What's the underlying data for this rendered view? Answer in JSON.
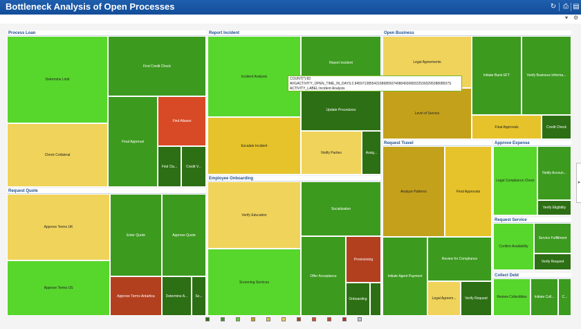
{
  "header": {
    "title": "Bottleneck Analysis of Open Processes",
    "icons": [
      "refresh-icon",
      "print-icon",
      "export-icon"
    ]
  },
  "toolbar": {
    "options_glyph": "▾",
    "settings_glyph": "⚙"
  },
  "colors": {
    "header_bg": "#1a56a3",
    "bright_green": "#57d62c",
    "medium_green": "#3c9a1f",
    "dark_green": "#2d6f14",
    "light_yellow": "#f0d35a",
    "yellow": "#e6c32a",
    "olive": "#c4a11b",
    "orange": "#d84a25",
    "rust": "#b2401f"
  },
  "groups": [
    {
      "title": "Process Loan",
      "cells": [
        {
          "label": "Determine Limit",
          "color": "#57d62c",
          "tone": "lt"
        },
        {
          "label": "Check Collateral",
          "color": "#f0d35a",
          "tone": "lt"
        },
        {
          "label": "First Credit Check",
          "color": "#3c9a1f",
          "tone": "dk"
        },
        {
          "label": "Final Approval",
          "color": "#3c9a1f",
          "tone": "dk"
        },
        {
          "label": "Find Aliases",
          "color": "#d84a25",
          "tone": "dk"
        },
        {
          "label": "Find Clu...",
          "color": "#2d6f14",
          "tone": "dk"
        },
        {
          "label": "Credit V...",
          "color": "#2d6f14",
          "tone": "dk"
        }
      ]
    },
    {
      "title": "Request Quote",
      "cells": [
        {
          "label": "Approve Terms UK",
          "color": "#f0d35a",
          "tone": "lt"
        },
        {
          "label": "Approve Terms US",
          "color": "#57d62c",
          "tone": "lt"
        },
        {
          "label": "Enter Quote",
          "color": "#3c9a1f",
          "tone": "dk"
        },
        {
          "label": "Approve Quote",
          "color": "#3c9a1f",
          "tone": "dk"
        },
        {
          "label": "Approve Terms Antartica",
          "color": "#b2401f",
          "tone": "dk"
        },
        {
          "label": "Determine A...",
          "color": "#2d6f14",
          "tone": "dk"
        },
        {
          "label": "Se...",
          "color": "#2d6f14",
          "tone": "dk"
        }
      ]
    },
    {
      "title": "Report Incident",
      "cells": [
        {
          "label": "Incident Analysis",
          "color": "#57d62c",
          "tone": "lt"
        },
        {
          "label": "Report Incident",
          "color": "#3c9a1f",
          "tone": "dk"
        },
        {
          "label": "Update Procedures",
          "color": "#2d6f14",
          "tone": "dk"
        },
        {
          "label": "Escalate Incident",
          "color": "#e6c32a",
          "tone": "lt"
        },
        {
          "label": "Notify Parties",
          "color": "#f0d35a",
          "tone": "lt"
        },
        {
          "label": "Assig...",
          "color": "#2d6f14",
          "tone": "dk"
        }
      ]
    },
    {
      "title": "Employee Onboarding",
      "cells": [
        {
          "label": "Verify Education",
          "color": "#f0d35a",
          "tone": "lt"
        },
        {
          "label": "Screening Services",
          "color": "#57d62c",
          "tone": "lt"
        },
        {
          "label": "Socialization",
          "color": "#3c9a1f",
          "tone": "dk"
        },
        {
          "label": "Offer Acceptance",
          "color": "#3c9a1f",
          "tone": "dk"
        },
        {
          "label": "Provisioning",
          "color": "#b2401f",
          "tone": "dk"
        },
        {
          "label": "Onboarding",
          "color": "#2d6f14",
          "tone": "dk"
        },
        {
          "label": "",
          "color": "#2d6f14",
          "tone": "dk"
        }
      ]
    },
    {
      "title": "Open Business",
      "cells": [
        {
          "label": "Legal Agreements",
          "color": "#f0d35a",
          "tone": "lt"
        },
        {
          "label": "Level of Service",
          "color": "#c4a11b",
          "tone": "lt"
        },
        {
          "label": "Initiate Bank EFT",
          "color": "#3c9a1f",
          "tone": "dk"
        },
        {
          "label": "Verify Business Informa...",
          "color": "#3c9a1f",
          "tone": "dk"
        },
        {
          "label": "Final Approvals",
          "color": "#e6c32a",
          "tone": "lt"
        },
        {
          "label": "Credit Check",
          "color": "#2d6f14",
          "tone": "dk"
        }
      ]
    },
    {
      "title": "Request Travel",
      "cells": [
        {
          "label": "Analyze Patterns",
          "color": "#c4a11b",
          "tone": "lt"
        },
        {
          "label": "Final Approvals",
          "color": "#e6c32a",
          "tone": "lt"
        },
        {
          "label": "Initiate Agent Payment",
          "color": "#3c9a1f",
          "tone": "dk"
        },
        {
          "label": "Review for Compliance",
          "color": "#3c9a1f",
          "tone": "dk"
        },
        {
          "label": "Legal Agreem...",
          "color": "#f0d35a",
          "tone": "lt"
        },
        {
          "label": "Verify Request",
          "color": "#2d6f14",
          "tone": "dk"
        }
      ]
    },
    {
      "title": "Approve Expense",
      "cells": [
        {
          "label": "Legal Compliance Check",
          "color": "#57d62c",
          "tone": "lt"
        },
        {
          "label": "Notify Accoun...",
          "color": "#3c9a1f",
          "tone": "dk"
        },
        {
          "label": "Verify Eligibility",
          "color": "#2d6f14",
          "tone": "dk"
        }
      ]
    },
    {
      "title": "Request Service",
      "cells": [
        {
          "label": "Confirm Availability",
          "color": "#57d62c",
          "tone": "lt"
        },
        {
          "label": "Service Fulfillment",
          "color": "#3c9a1f",
          "tone": "dk"
        },
        {
          "label": "Verify Request",
          "color": "#2d6f14",
          "tone": "dk"
        }
      ]
    },
    {
      "title": "Collect Debt",
      "cells": [
        {
          "label": "Review Collectibles",
          "color": "#57d62c",
          "tone": "lt"
        },
        {
          "label": "Initiate Coll...",
          "color": "#3c9a1f",
          "tone": "dk"
        },
        {
          "label": "C...",
          "color": "#3c9a1f",
          "tone": "dk"
        }
      ]
    }
  ],
  "tooltip": {
    "line1": "COUNT(*):83",
    "line2": "AVGACTIVITY_OPEN_TIME_IN_DAYS:2.8459713855421686855074080493068322539329528808937S",
    "line3": "ACTIVITY_LABEL:Incident Analysis"
  },
  "legend": {
    "swatches": [
      "#2d6f14",
      "#3c9a1f",
      "#57d62c",
      "#c4a11b",
      "#e6c32a",
      "#f0d35a",
      "#b2401f",
      "#d84a25",
      "#c44a2a",
      "#cc1f1f",
      "#bfc8d6"
    ]
  }
}
